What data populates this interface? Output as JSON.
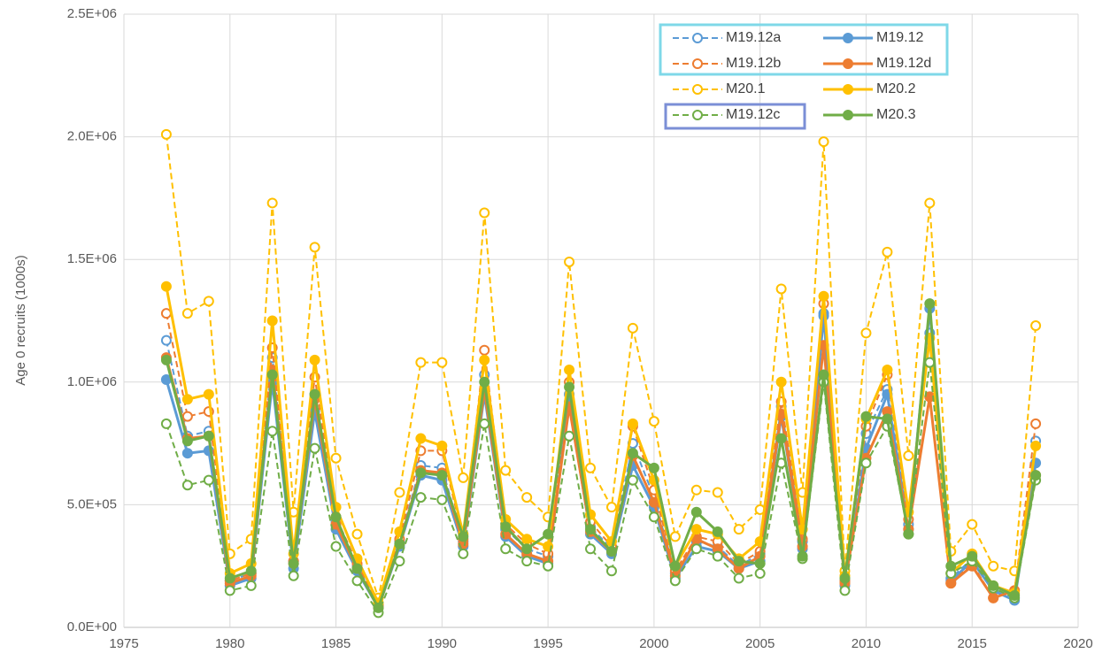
{
  "chart_data": {
    "type": "line",
    "y_label": "Age 0 recruits (1000s)",
    "x": [
      1977,
      1978,
      1979,
      1980,
      1981,
      1982,
      1983,
      1984,
      1985,
      1986,
      1987,
      1988,
      1989,
      1990,
      1991,
      1992,
      1993,
      1994,
      1995,
      1996,
      1997,
      1998,
      1999,
      2000,
      2001,
      2002,
      2003,
      2004,
      2005,
      2006,
      2007,
      2008,
      2009,
      2010,
      2011,
      2012,
      2013,
      2014,
      2015,
      2016,
      2017,
      2018
    ],
    "xlim": [
      1975,
      2020
    ],
    "xticks": [
      1975,
      1980,
      1985,
      1990,
      1995,
      2000,
      2005,
      2010,
      2015,
      2020
    ],
    "ylim": [
      0,
      2500000
    ],
    "yticks": [
      {
        "value": 0,
        "label": "0.0E+00"
      },
      {
        "value": 500000,
        "label": "5.0E+05"
      },
      {
        "value": 1000000,
        "label": "1.0E+06"
      },
      {
        "value": 1500000,
        "label": "1.5E+06"
      },
      {
        "value": 2000000,
        "label": "2.0E+06"
      },
      {
        "value": 2500000,
        "label": "2.5E+06"
      }
    ],
    "grid": true,
    "series": [
      {
        "name": "M19.12a",
        "color": "#5b9bd5",
        "dashed": true,
        "values": [
          1170000,
          780000,
          800000,
          190000,
          220000,
          1100000,
          270000,
          950000,
          430000,
          250000,
          90000,
          350000,
          660000,
          650000,
          350000,
          1030000,
          400000,
          320000,
          290000,
          950000,
          410000,
          320000,
          750000,
          530000,
          220000,
          350000,
          330000,
          250000,
          300000,
          900000,
          350000,
          1280000,
          190000,
          790000,
          970000,
          420000,
          1200000,
          200000,
          280000,
          160000,
          120000,
          760000
        ]
      },
      {
        "name": "M19.12",
        "color": "#5b9bd5",
        "dashed": false,
        "values": [
          1010000,
          710000,
          720000,
          170000,
          200000,
          1000000,
          240000,
          880000,
          400000,
          230000,
          80000,
          330000,
          620000,
          600000,
          330000,
          950000,
          370000,
          290000,
          260000,
          920000,
          380000,
          300000,
          660000,
          490000,
          200000,
          330000,
          310000,
          240000,
          270000,
          860000,
          320000,
          1270000,
          170000,
          730000,
          950000,
          400000,
          1300000,
          190000,
          270000,
          150000,
          110000,
          670000
        ]
      },
      {
        "name": "M19.12b",
        "color": "#ed7d31",
        "dashed": true,
        "values": [
          1280000,
          860000,
          880000,
          190000,
          220000,
          1140000,
          270000,
          1020000,
          450000,
          260000,
          90000,
          360000,
          720000,
          720000,
          360000,
          1130000,
          420000,
          340000,
          300000,
          1000000,
          430000,
          330000,
          820000,
          560000,
          230000,
          370000,
          350000,
          260000,
          310000,
          920000,
          360000,
          1320000,
          190000,
          820000,
          1030000,
          440000,
          940000,
          180000,
          260000,
          120000,
          150000,
          830000
        ]
      },
      {
        "name": "M19.12d",
        "color": "#ed7d31",
        "dashed": false,
        "values": [
          1100000,
          770000,
          780000,
          180000,
          210000,
          1050000,
          260000,
          930000,
          420000,
          240000,
          80000,
          340000,
          640000,
          630000,
          340000,
          970000,
          380000,
          300000,
          270000,
          900000,
          390000,
          310000,
          700000,
          510000,
          210000,
          360000,
          320000,
          240000,
          290000,
          870000,
          330000,
          1150000,
          180000,
          690000,
          880000,
          400000,
          940000,
          180000,
          250000,
          120000,
          150000,
          620000
        ]
      },
      {
        "name": "M20.1",
        "color": "#ffc000",
        "dashed": true,
        "values": [
          2010000,
          1280000,
          1330000,
          300000,
          360000,
          1730000,
          470000,
          1550000,
          690000,
          380000,
          120000,
          550000,
          1080000,
          1080000,
          610000,
          1690000,
          640000,
          530000,
          450000,
          1490000,
          650000,
          490000,
          1220000,
          840000,
          370000,
          560000,
          550000,
          400000,
          480000,
          1380000,
          550000,
          1980000,
          230000,
          1200000,
          1530000,
          700000,
          1730000,
          310000,
          420000,
          250000,
          230000,
          1230000
        ]
      },
      {
        "name": "M20.2",
        "color": "#ffc000",
        "dashed": false,
        "values": [
          1390000,
          930000,
          950000,
          220000,
          260000,
          1250000,
          300000,
          1090000,
          490000,
          280000,
          100000,
          390000,
          770000,
          740000,
          380000,
          1090000,
          440000,
          360000,
          330000,
          1050000,
          460000,
          350000,
          830000,
          600000,
          250000,
          400000,
          380000,
          280000,
          350000,
          1000000,
          400000,
          1350000,
          210000,
          850000,
          1050000,
          470000,
          1180000,
          220000,
          300000,
          170000,
          140000,
          740000
        ]
      },
      {
        "name": "M19.12c",
        "color": "#70ad47",
        "dashed": true,
        "values": [
          830000,
          580000,
          600000,
          150000,
          170000,
          800000,
          210000,
          730000,
          330000,
          190000,
          60000,
          270000,
          530000,
          520000,
          300000,
          830000,
          320000,
          270000,
          250000,
          780000,
          320000,
          230000,
          600000,
          450000,
          190000,
          320000,
          290000,
          200000,
          220000,
          670000,
          280000,
          1000000,
          150000,
          670000,
          820000,
          380000,
          1080000,
          220000,
          270000,
          160000,
          120000,
          600000
        ]
      },
      {
        "name": "M20.3",
        "color": "#70ad47",
        "dashed": false,
        "values": [
          1090000,
          760000,
          780000,
          200000,
          230000,
          1030000,
          260000,
          950000,
          450000,
          240000,
          80000,
          340000,
          630000,
          620000,
          370000,
          1000000,
          410000,
          320000,
          380000,
          980000,
          400000,
          310000,
          710000,
          650000,
          250000,
          470000,
          390000,
          270000,
          260000,
          770000,
          290000,
          1030000,
          200000,
          860000,
          850000,
          380000,
          1320000,
          250000,
          290000,
          170000,
          130000,
          620000
        ]
      }
    ]
  }
}
